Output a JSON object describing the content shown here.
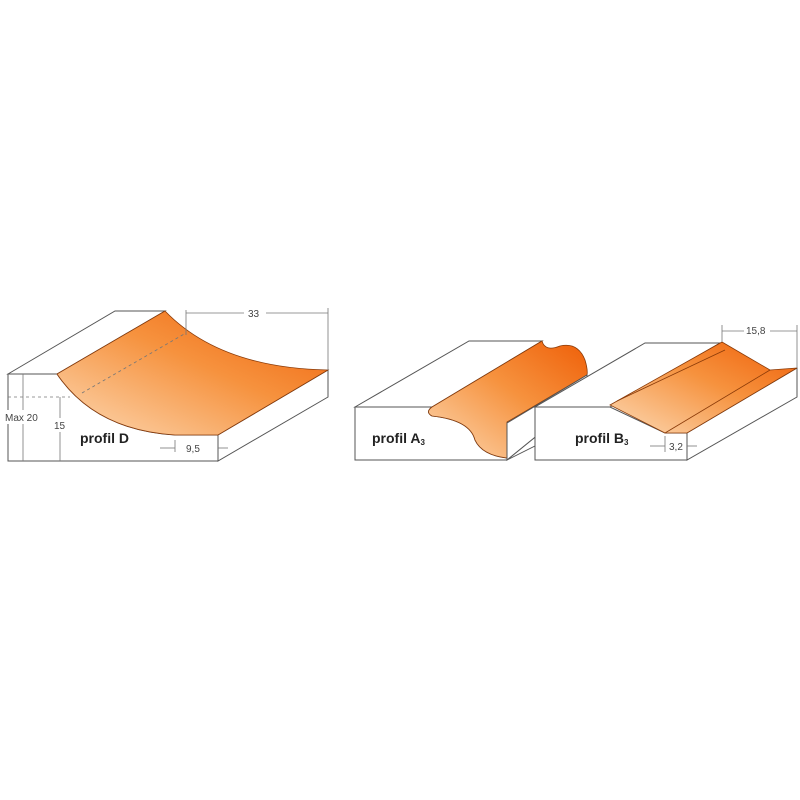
{
  "colors": {
    "orange_dark": "#f06a10",
    "orange_light": "#fbd2a8",
    "outline": "#555555"
  },
  "profiles": [
    {
      "name": "profil D",
      "sub": "",
      "dims": {
        "width": "33",
        "max_height": "Max 20",
        "height": "15",
        "offset": "9,5"
      }
    },
    {
      "name": "profil A",
      "sub": "3"
    },
    {
      "name": "profil B",
      "sub": "3",
      "dims": {
        "width": "15,8",
        "offset": "3,2"
      }
    }
  ]
}
